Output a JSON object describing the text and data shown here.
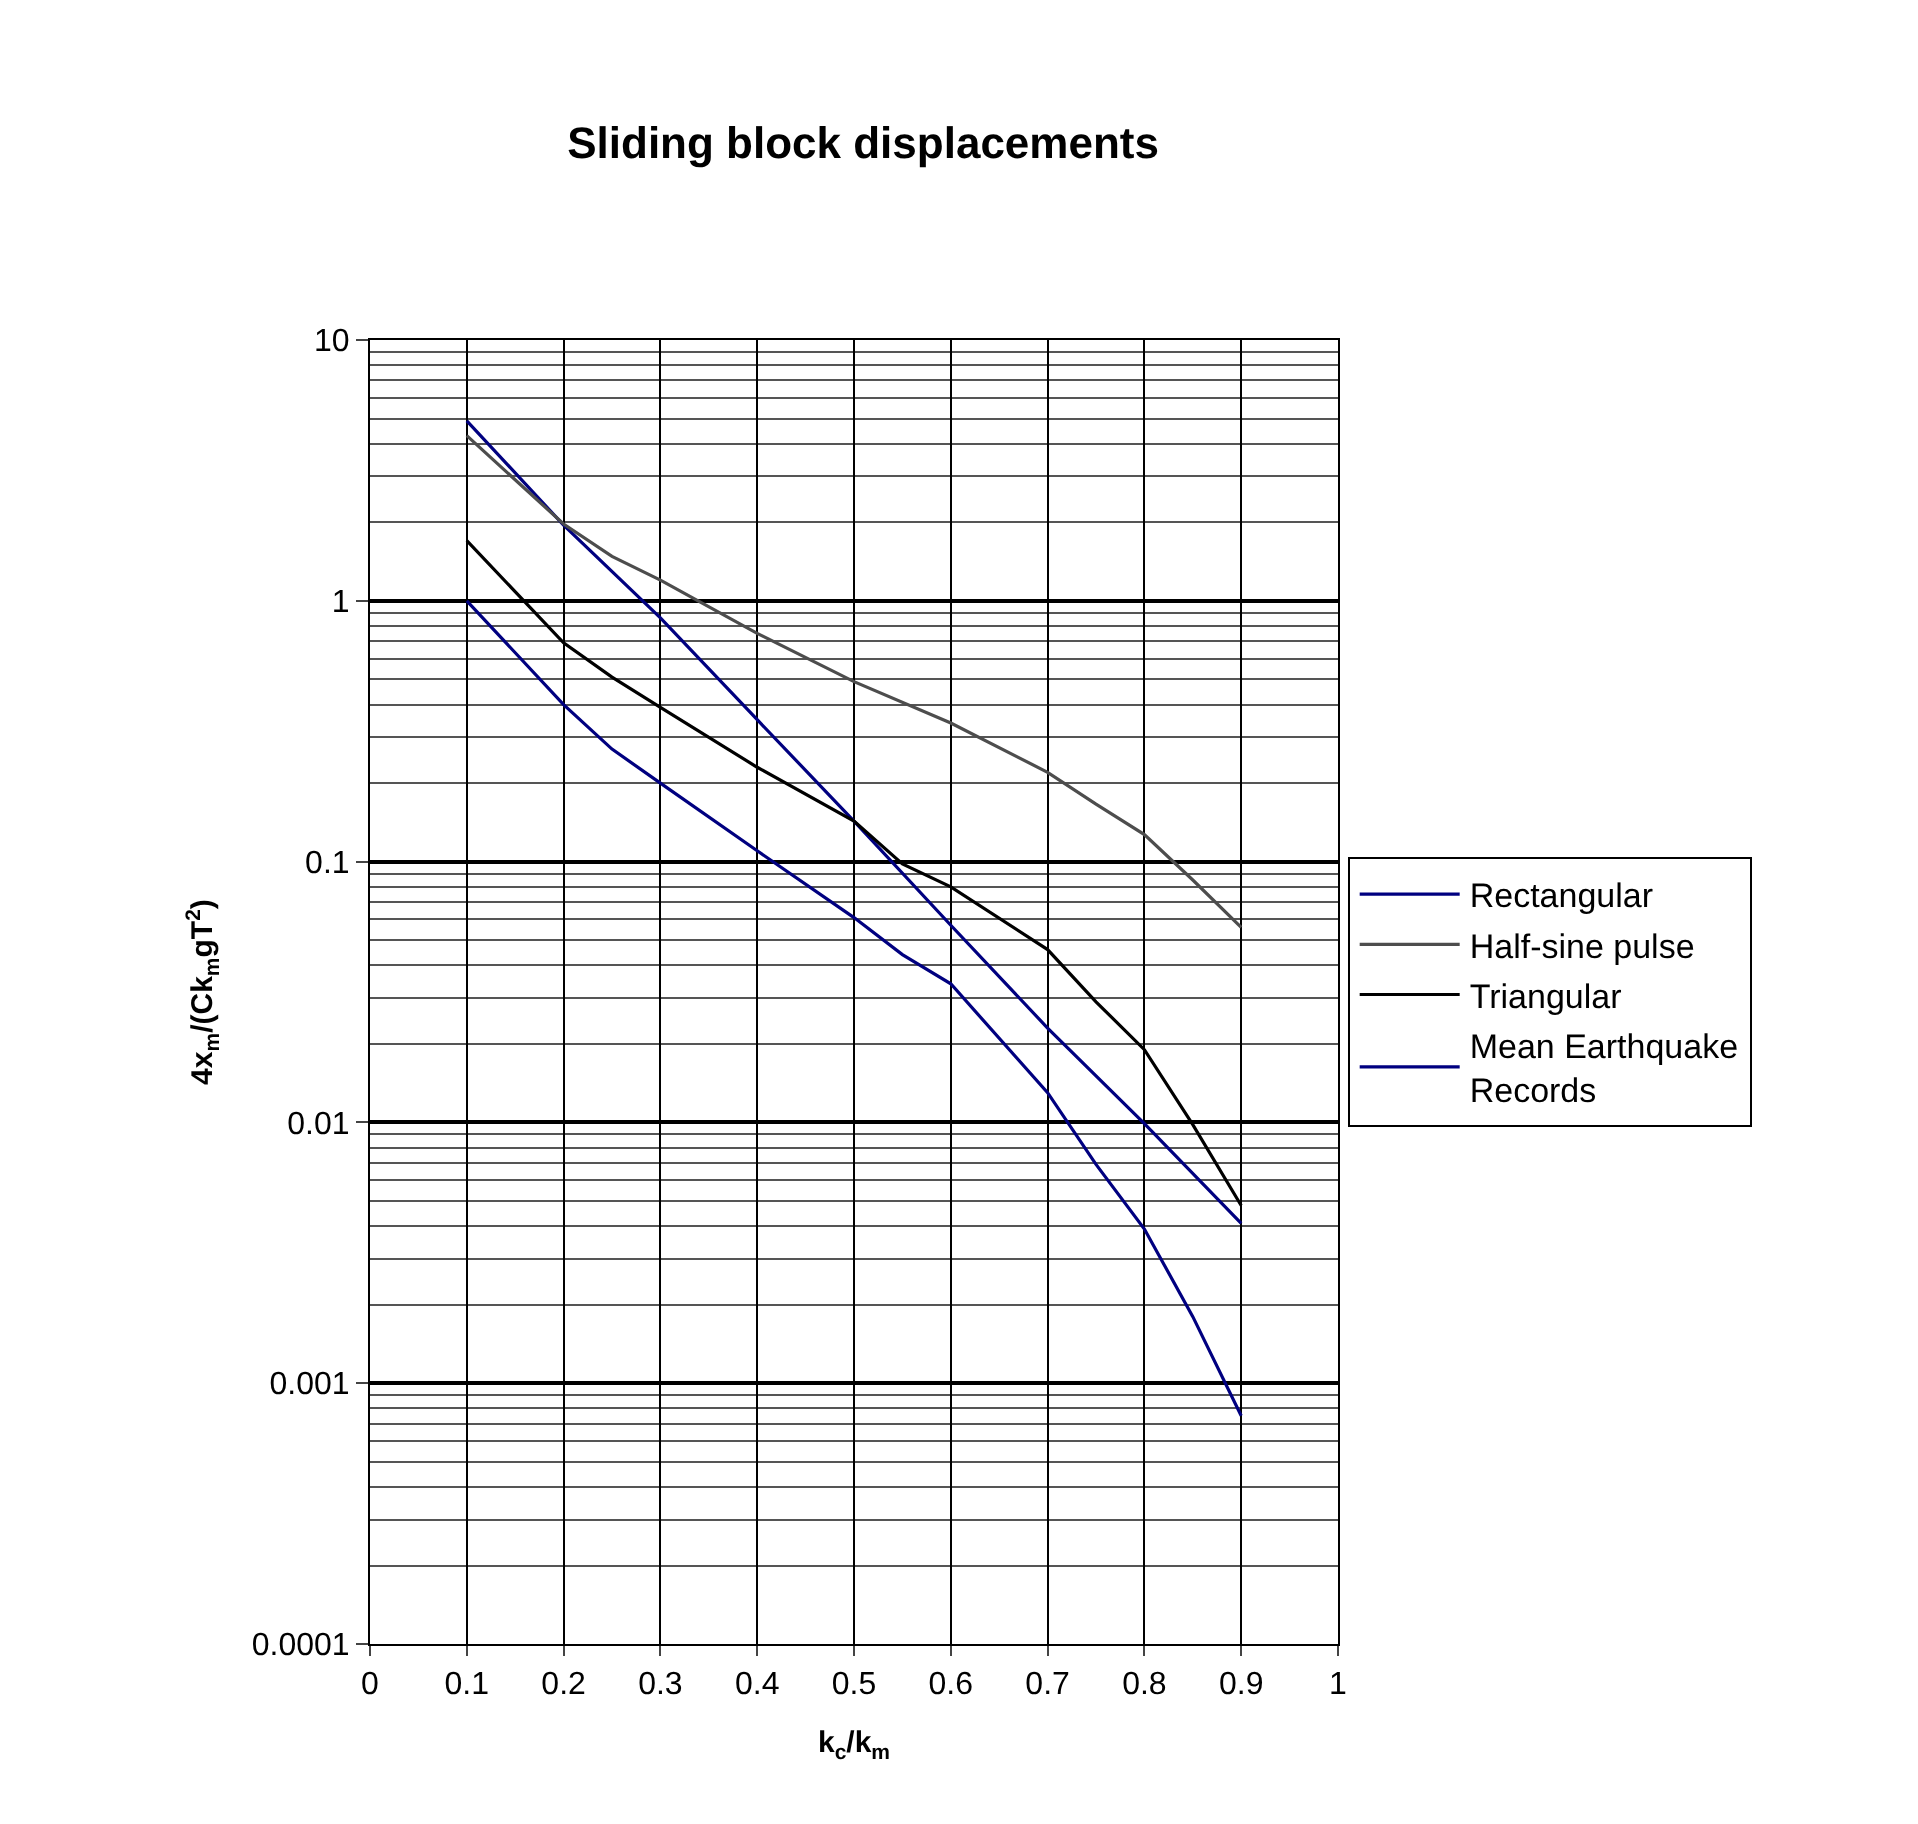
{
  "chart_data": {
    "type": "line",
    "title": "Sliding block displacements",
    "xlabel": "k$_{c}$/k$_{m}$",
    "ylabel": "4x$_{m}$/(Ck$_{m}$gT$^{2}$)",
    "log": "y",
    "grid": true,
    "legend": "right",
    "marker": "none",
    "line_style": "solid",
    "xlim": [
      0,
      1
    ],
    "xticks": [
      0,
      0.1,
      0.2,
      0.3,
      0.4,
      0.5,
      0.6,
      0.7,
      0.8,
      0.9,
      1
    ],
    "ylim": [
      0.0001,
      10
    ],
    "yticks": [
      0.0001,
      0.001,
      0.01,
      0.1,
      1,
      10
    ],
    "series": [
      {
        "name": "Rectangular",
        "color": "#000080",
        "x": [
          0.1,
          0.2,
          0.3,
          0.4,
          0.5,
          0.6,
          0.7,
          0.8,
          0.9
        ],
        "values": [
          4.9,
          1.95,
          0.86,
          0.35,
          0.143,
          0.057,
          0.023,
          0.0099,
          0.0041
        ]
      },
      {
        "name": "Half-sine pulse",
        "color": "#4d4d4d",
        "x": [
          0.1,
          0.2,
          0.25,
          0.3,
          0.4,
          0.5,
          0.6,
          0.7,
          0.75,
          0.8,
          0.85,
          0.9
        ],
        "values": [
          4.3,
          1.97,
          1.48,
          1.2,
          0.75,
          0.49,
          0.34,
          0.22,
          0.166,
          0.127,
          0.085,
          0.056
        ]
      },
      {
        "name": "Triangular",
        "color": "#000000",
        "x": [
          0.1,
          0.2,
          0.25,
          0.3,
          0.4,
          0.5,
          0.55,
          0.6,
          0.7,
          0.75,
          0.8,
          0.85,
          0.9
        ],
        "values": [
          1.7,
          0.69,
          0.51,
          0.39,
          0.23,
          0.143,
          0.098,
          0.08,
          0.046,
          0.029,
          0.019,
          0.0098,
          0.0048
        ]
      },
      {
        "name": "Mean Earthquake Records",
        "color": "#000080",
        "x": [
          0.1,
          0.2,
          0.25,
          0.3,
          0.4,
          0.5,
          0.55,
          0.6,
          0.7,
          0.75,
          0.8,
          0.85,
          0.9
        ],
        "values": [
          1.0,
          0.4,
          0.27,
          0.2,
          0.11,
          0.061,
          0.044,
          0.034,
          0.013,
          0.0069,
          0.0039,
          0.0018,
          0.00075
        ]
      }
    ]
  }
}
